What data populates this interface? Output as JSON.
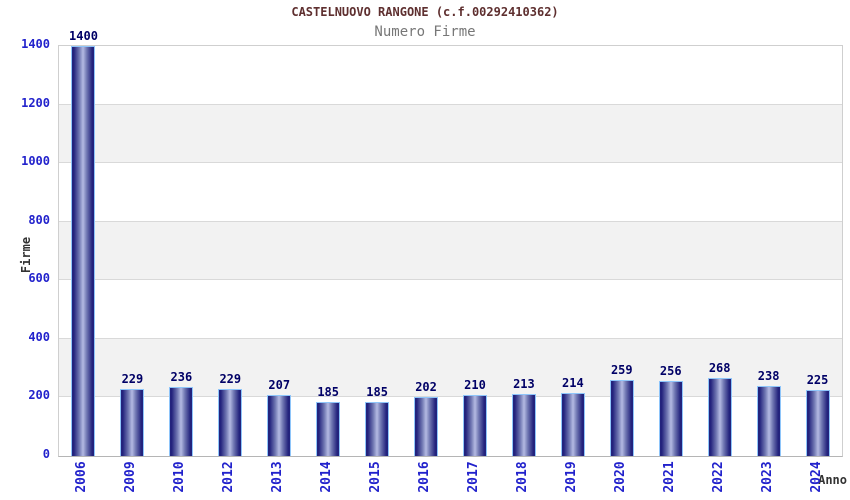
{
  "chart_data": {
    "type": "bar",
    "title": "CASTELNUOVO RANGONE (c.f.00292410362)",
    "subtitle": "Numero Firme",
    "xlabel": "Anno",
    "ylabel": "Firme",
    "categories": [
      "2006",
      "2009",
      "2010",
      "2012",
      "2013",
      "2014",
      "2015",
      "2016",
      "2017",
      "2018",
      "2019",
      "2020",
      "2021",
      "2022",
      "2023",
      "2024"
    ],
    "values": [
      1400,
      229,
      236,
      229,
      207,
      185,
      185,
      202,
      210,
      213,
      214,
      259,
      256,
      268,
      238,
      225
    ],
    "ylim": [
      0,
      1400
    ],
    "yticks": [
      0,
      200,
      400,
      600,
      800,
      1000,
      1200,
      1400
    ],
    "grid": "horizontal-bands",
    "legend": "none"
  },
  "colors": {
    "title": "#5e2f2f",
    "subtitle": "#777777",
    "axis_label": "#333333",
    "tick_label": "#2222cc",
    "data_label": "#000066",
    "band_gray": "#f2f2f2",
    "band_white": "#ffffff",
    "gridline": "#d9d9d9",
    "bar_dark": "#23237d",
    "bar_mid": "#6d74b0",
    "bar_light": "#b4bae2",
    "bar_border": "#8ec5fa"
  }
}
